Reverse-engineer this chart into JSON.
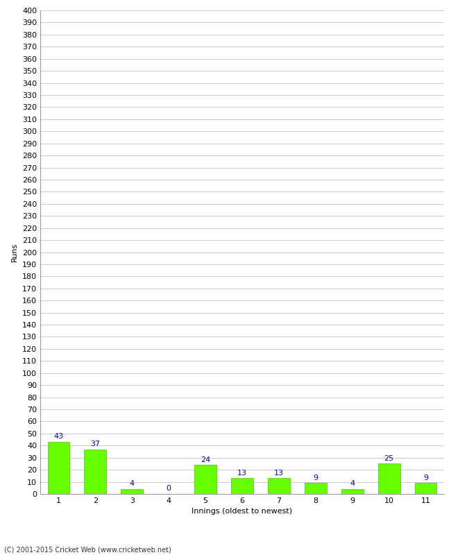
{
  "innings": [
    1,
    2,
    3,
    4,
    5,
    6,
    7,
    8,
    9,
    10,
    11
  ],
  "runs": [
    43,
    37,
    4,
    0,
    24,
    13,
    13,
    9,
    4,
    25,
    9
  ],
  "bar_color": "#66ff00",
  "bar_edge_color": "#44cc00",
  "label_color": "#0000cc",
  "xlabel": "Innings (oldest to newest)",
  "ylabel": "Runs",
  "ylim": [
    0,
    400
  ],
  "ytick_step": 10,
  "background_color": "#ffffff",
  "grid_color": "#cccccc",
  "footer": "(C) 2001-2015 Cricket Web (www.cricketweb.net)",
  "tick_fontsize": 8,
  "label_fontsize": 8,
  "ylabel_fontsize": 8,
  "footer_fontsize": 7
}
